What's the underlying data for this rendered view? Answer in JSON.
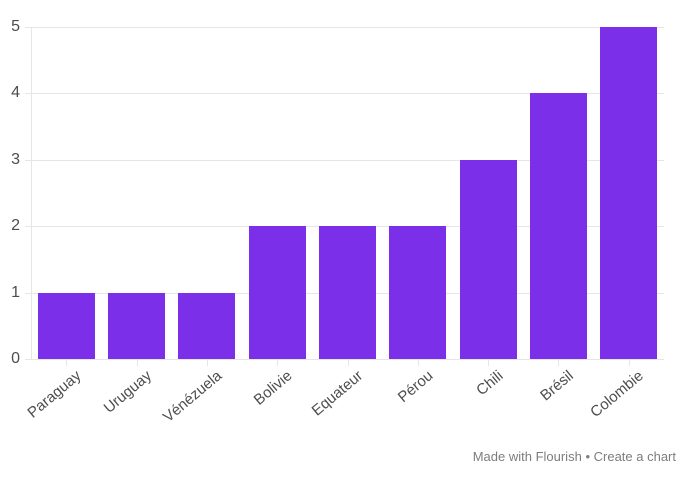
{
  "chart_data": {
    "type": "bar",
    "categories": [
      "Paraguay",
      "Uruguay",
      "Vénézuela",
      "Bolivie",
      "Equateur",
      "Pérou",
      "Chili",
      "Brésil",
      "Colombie"
    ],
    "values": [
      1,
      1,
      1,
      2,
      2,
      2,
      3,
      4,
      5
    ],
    "title": "",
    "xlabel": "",
    "ylabel": "",
    "ylim": [
      0,
      5
    ],
    "yticks": [
      0,
      1,
      2,
      3,
      4,
      5
    ],
    "grid": true,
    "legend": false,
    "bar_color": "#7B2FE8"
  },
  "colors": {
    "bar": "#7B2FE8",
    "grid": "#e6e6e6",
    "axis_label": "#4d4d4d",
    "footer": "#7d7d7d",
    "background": "#ffffff"
  },
  "footer": {
    "made_with": "Made with Flourish",
    "separator": "•",
    "create": "Create a chart"
  }
}
